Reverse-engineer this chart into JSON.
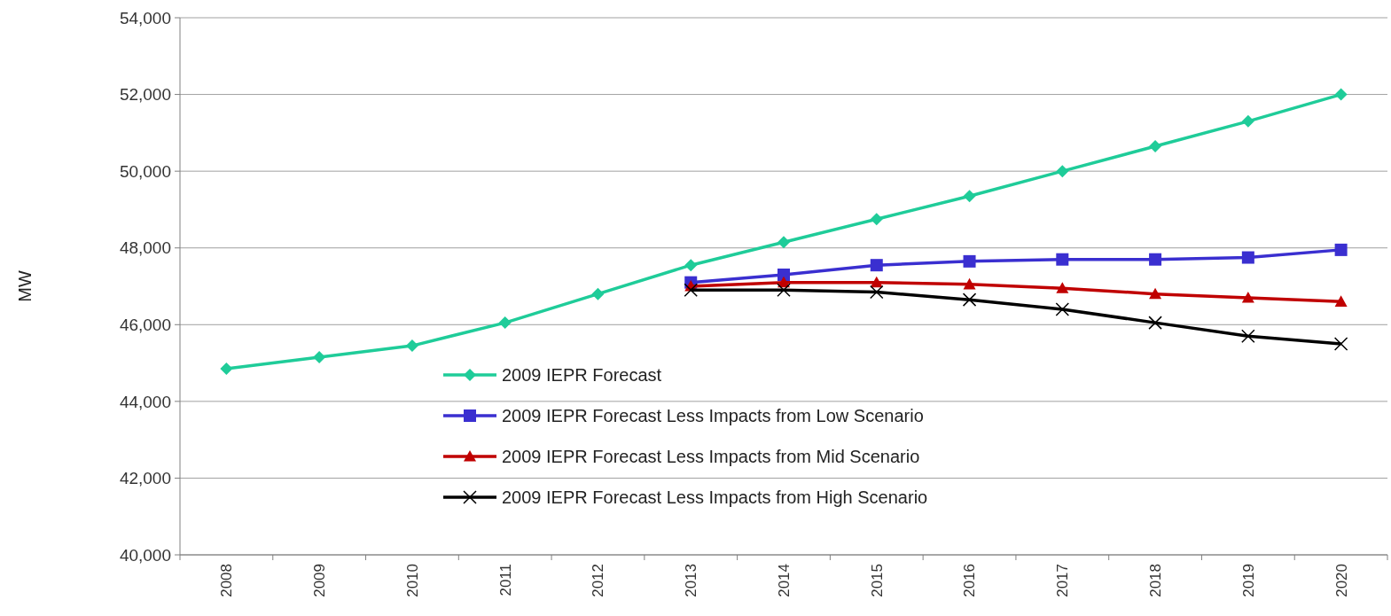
{
  "chart_data": {
    "type": "line",
    "ylabel": "MW",
    "categories": [
      "2008",
      "2009",
      "2010",
      "2011",
      "2012",
      "2013",
      "2014",
      "2015",
      "2016",
      "2017",
      "2018",
      "2019",
      "2020"
    ],
    "series": [
      {
        "name": "2009 IEPR Forecast",
        "color": "#1fcc99",
        "marker": "diamond",
        "values": [
          44850,
          45150,
          45450,
          46050,
          46800,
          47550,
          48150,
          48750,
          49350,
          50000,
          50650,
          51300,
          52000
        ]
      },
      {
        "name": "2009 IEPR Forecast Less Impacts from Low Scenario",
        "color": "#3a2fd0",
        "marker": "square",
        "values": [
          null,
          null,
          null,
          null,
          null,
          47100,
          47300,
          47550,
          47650,
          47700,
          47700,
          47750,
          47950
        ]
      },
      {
        "name": "2009 IEPR Forecast Less Impacts from Mid Scenario",
        "color": "#c00000",
        "marker": "triangle",
        "values": [
          null,
          null,
          null,
          null,
          null,
          47000,
          47100,
          47100,
          47050,
          46950,
          46800,
          46700,
          46600
        ]
      },
      {
        "name": "2009 IEPR Forecast Less Impacts from High Scenario",
        "color": "#000000",
        "marker": "cross",
        "values": [
          null,
          null,
          null,
          null,
          null,
          46900,
          46900,
          46850,
          46650,
          46400,
          46050,
          45700,
          45500
        ]
      }
    ],
    "ylim": [
      40000,
      54000
    ],
    "yticks": [
      {
        "value": 40000,
        "label": "40,000"
      },
      {
        "value": 42000,
        "label": "42,000"
      },
      {
        "value": 44000,
        "label": "44,000"
      },
      {
        "value": 46000,
        "label": "46,000"
      },
      {
        "value": 48000,
        "label": "48,000"
      },
      {
        "value": 50000,
        "label": "50,000"
      },
      {
        "value": 52000,
        "label": "52,000"
      },
      {
        "value": 54000,
        "label": "54,000"
      }
    ],
    "grid": "y",
    "legend": "bottom",
    "line_style": "solid"
  }
}
